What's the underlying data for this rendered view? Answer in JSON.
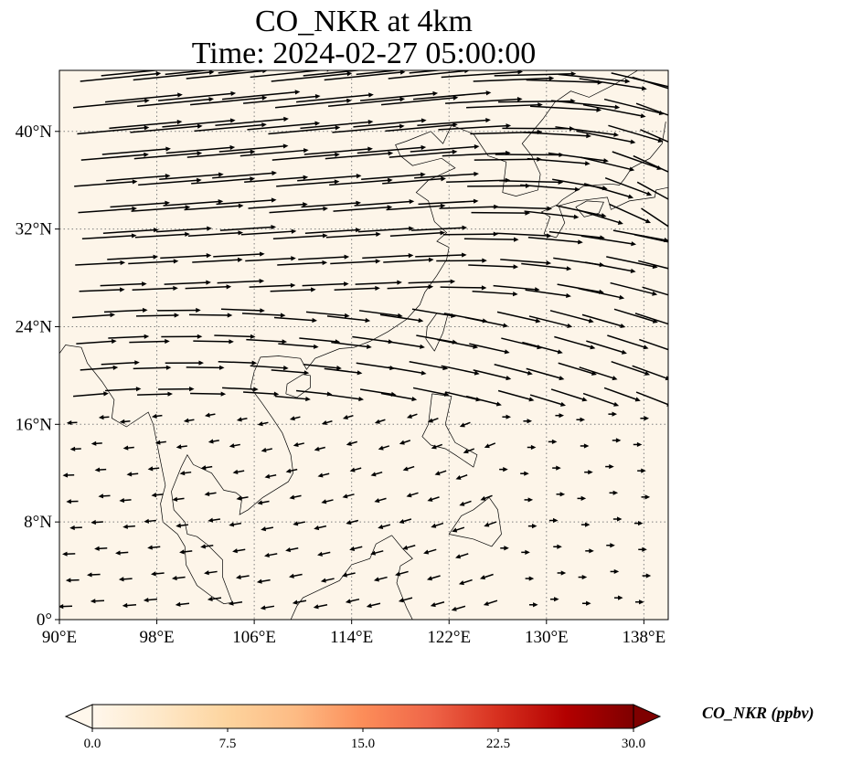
{
  "title": {
    "line1": "CO_NKR at 4km",
    "line2": "Time: 2024-02-27 05:00:00"
  },
  "map": {
    "projection": "PlateCarree",
    "extent": {
      "lon_min": 90,
      "lon_max": 140,
      "lat_min": 0,
      "lat_max": 45
    },
    "background_color": "#fdf5e9",
    "coastline_color": "#000000",
    "gridlines": "dotted",
    "lon_ticks": [
      {
        "value": 90,
        "label": "90°E"
      },
      {
        "value": 98,
        "label": "98°E"
      },
      {
        "value": 106,
        "label": "106°E"
      },
      {
        "value": 114,
        "label": "114°E"
      },
      {
        "value": 122,
        "label": "122°E"
      },
      {
        "value": 130,
        "label": "130°E"
      },
      {
        "value": 138,
        "label": "138°E"
      }
    ],
    "lat_ticks": [
      {
        "value": 0,
        "label": "0°"
      },
      {
        "value": 8,
        "label": "8°N"
      },
      {
        "value": 16,
        "label": "16°N"
      },
      {
        "value": 24,
        "label": "24°N"
      },
      {
        "value": 32,
        "label": "32°N"
      },
      {
        "value": 40,
        "label": "40°N"
      }
    ],
    "wind_vectors": "quiver",
    "arrow_color": "#000000"
  },
  "colorbar": {
    "title": "CO_NKR (ppbv)",
    "min": 0.0,
    "max": 30.0,
    "extend": "both",
    "colormap": "OrRd",
    "colors": [
      "#fff7ec",
      "#fee8c8",
      "#fdd49e",
      "#fdbb84",
      "#fc8d59",
      "#ef6548",
      "#d7301f",
      "#b30000",
      "#7f0000"
    ],
    "ticks": [
      {
        "value": 0.0,
        "label": "0.0"
      },
      {
        "value": 7.5,
        "label": "7.5"
      },
      {
        "value": 15.0,
        "label": "15.0"
      },
      {
        "value": 22.5,
        "label": "22.5"
      },
      {
        "value": 30.0,
        "label": "30.0"
      }
    ]
  }
}
